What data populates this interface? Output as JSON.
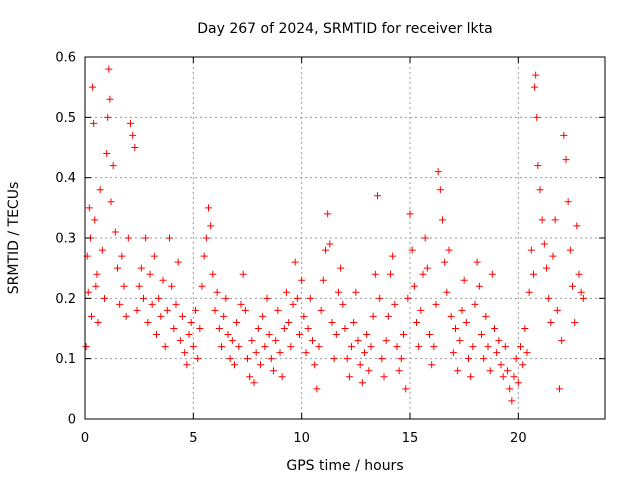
{
  "chart_data": {
    "type": "scatter",
    "title": "Day 267 of 2024, SRMTID for receiver lkta",
    "xlabel": "GPS time / hours",
    "ylabel": "SRMTID / TECUs",
    "xlim": [
      0,
      24
    ],
    "ylim": [
      0,
      0.6
    ],
    "xticks": [
      0,
      5,
      10,
      15,
      20
    ],
    "xtick_labels": [
      "0",
      "5",
      "10",
      "15",
      "20"
    ],
    "yticks": [
      0,
      0.1,
      0.2,
      0.3,
      0.4,
      0.5,
      0.6
    ],
    "ytick_labels": [
      "0",
      "0.1",
      "0.2",
      "0.3",
      "0.4",
      "0.5",
      "0.6"
    ],
    "grid": true,
    "marker": "+",
    "series_color": "#ff0000",
    "series": [
      {
        "name": "SRMTID",
        "points": [
          [
            0.05,
            0.12
          ],
          [
            0.1,
            0.27
          ],
          [
            0.15,
            0.21
          ],
          [
            0.2,
            0.35
          ],
          [
            0.25,
            0.3
          ],
          [
            0.3,
            0.17
          ],
          [
            0.35,
            0.55
          ],
          [
            0.4,
            0.49
          ],
          [
            0.45,
            0.33
          ],
          [
            0.5,
            0.22
          ],
          [
            0.55,
            0.24
          ],
          [
            0.6,
            0.16
          ],
          [
            0.7,
            0.38
          ],
          [
            0.8,
            0.28
          ],
          [
            0.9,
            0.2
          ],
          [
            1.0,
            0.44
          ],
          [
            1.05,
            0.5
          ],
          [
            1.1,
            0.58
          ],
          [
            1.15,
            0.53
          ],
          [
            1.2,
            0.36
          ],
          [
            1.3,
            0.42
          ],
          [
            1.4,
            0.31
          ],
          [
            1.5,
            0.25
          ],
          [
            1.6,
            0.19
          ],
          [
            1.7,
            0.27
          ],
          [
            1.8,
            0.22
          ],
          [
            1.9,
            0.17
          ],
          [
            2.0,
            0.3
          ],
          [
            2.1,
            0.49
          ],
          [
            2.2,
            0.47
          ],
          [
            2.3,
            0.45
          ],
          [
            2.4,
            0.18
          ],
          [
            2.5,
            0.22
          ],
          [
            2.6,
            0.25
          ],
          [
            2.7,
            0.2
          ],
          [
            2.8,
            0.3
          ],
          [
            2.9,
            0.16
          ],
          [
            3.0,
            0.24
          ],
          [
            3.1,
            0.19
          ],
          [
            3.2,
            0.27
          ],
          [
            3.3,
            0.14
          ],
          [
            3.4,
            0.2
          ],
          [
            3.5,
            0.17
          ],
          [
            3.6,
            0.23
          ],
          [
            3.7,
            0.12
          ],
          [
            3.8,
            0.18
          ],
          [
            3.9,
            0.3
          ],
          [
            4.0,
            0.22
          ],
          [
            4.1,
            0.15
          ],
          [
            4.2,
            0.19
          ],
          [
            4.3,
            0.26
          ],
          [
            4.4,
            0.13
          ],
          [
            4.5,
            0.17
          ],
          [
            4.6,
            0.11
          ],
          [
            4.7,
            0.09
          ],
          [
            4.8,
            0.14
          ],
          [
            4.9,
            0.16
          ],
          [
            5.0,
            0.12
          ],
          [
            5.1,
            0.18
          ],
          [
            5.2,
            0.1
          ],
          [
            5.3,
            0.15
          ],
          [
            5.4,
            0.22
          ],
          [
            5.5,
            0.27
          ],
          [
            5.6,
            0.3
          ],
          [
            5.7,
            0.35
          ],
          [
            5.8,
            0.32
          ],
          [
            5.9,
            0.24
          ],
          [
            6.0,
            0.18
          ],
          [
            6.1,
            0.21
          ],
          [
            6.2,
            0.15
          ],
          [
            6.3,
            0.12
          ],
          [
            6.4,
            0.17
          ],
          [
            6.5,
            0.2
          ],
          [
            6.6,
            0.14
          ],
          [
            6.7,
            0.1
          ],
          [
            6.8,
            0.13
          ],
          [
            6.9,
            0.09
          ],
          [
            7.0,
            0.16
          ],
          [
            7.1,
            0.12
          ],
          [
            7.2,
            0.19
          ],
          [
            7.3,
            0.24
          ],
          [
            7.4,
            0.18
          ],
          [
            7.5,
            0.1
          ],
          [
            7.6,
            0.07
          ],
          [
            7.7,
            0.13
          ],
          [
            7.8,
            0.06
          ],
          [
            7.9,
            0.11
          ],
          [
            8.0,
            0.15
          ],
          [
            8.1,
            0.09
          ],
          [
            8.2,
            0.17
          ],
          [
            8.3,
            0.12
          ],
          [
            8.4,
            0.2
          ],
          [
            8.5,
            0.14
          ],
          [
            8.6,
            0.1
          ],
          [
            8.7,
            0.08
          ],
          [
            8.8,
            0.13
          ],
          [
            8.9,
            0.18
          ],
          [
            9.0,
            0.11
          ],
          [
            9.1,
            0.07
          ],
          [
            9.2,
            0.15
          ],
          [
            9.3,
            0.21
          ],
          [
            9.4,
            0.16
          ],
          [
            9.5,
            0.12
          ],
          [
            9.6,
            0.19
          ],
          [
            9.7,
            0.26
          ],
          [
            9.8,
            0.2
          ],
          [
            9.9,
            0.14
          ],
          [
            10.0,
            0.23
          ],
          [
            10.1,
            0.17
          ],
          [
            10.2,
            0.11
          ],
          [
            10.3,
            0.15
          ],
          [
            10.4,
            0.2
          ],
          [
            10.5,
            0.13
          ],
          [
            10.6,
            0.09
          ],
          [
            10.7,
            0.05
          ],
          [
            10.8,
            0.12
          ],
          [
            10.9,
            0.18
          ],
          [
            11.0,
            0.23
          ],
          [
            11.1,
            0.28
          ],
          [
            11.2,
            0.34
          ],
          [
            11.3,
            0.29
          ],
          [
            11.4,
            0.16
          ],
          [
            11.5,
            0.1
          ],
          [
            11.6,
            0.14
          ],
          [
            11.7,
            0.21
          ],
          [
            11.8,
            0.25
          ],
          [
            11.9,
            0.19
          ],
          [
            12.0,
            0.15
          ],
          [
            12.1,
            0.1
          ],
          [
            12.2,
            0.07
          ],
          [
            12.3,
            0.12
          ],
          [
            12.4,
            0.16
          ],
          [
            12.5,
            0.21
          ],
          [
            12.6,
            0.13
          ],
          [
            12.7,
            0.09
          ],
          [
            12.8,
            0.06
          ],
          [
            12.9,
            0.11
          ],
          [
            13.0,
            0.14
          ],
          [
            13.1,
            0.08
          ],
          [
            13.2,
            0.12
          ],
          [
            13.3,
            0.17
          ],
          [
            13.4,
            0.24
          ],
          [
            13.5,
            0.37
          ],
          [
            13.6,
            0.2
          ],
          [
            13.7,
            0.1
          ],
          [
            13.8,
            0.07
          ],
          [
            13.9,
            0.13
          ],
          [
            14.0,
            0.17
          ],
          [
            14.1,
            0.24
          ],
          [
            14.2,
            0.27
          ],
          [
            14.3,
            0.19
          ],
          [
            14.4,
            0.12
          ],
          [
            14.5,
            0.08
          ],
          [
            14.6,
            0.1
          ],
          [
            14.7,
            0.14
          ],
          [
            14.8,
            0.05
          ],
          [
            14.9,
            0.2
          ],
          [
            15.0,
            0.34
          ],
          [
            15.1,
            0.28
          ],
          [
            15.2,
            0.22
          ],
          [
            15.3,
            0.16
          ],
          [
            15.4,
            0.12
          ],
          [
            15.5,
            0.18
          ],
          [
            15.6,
            0.24
          ],
          [
            15.7,
            0.3
          ],
          [
            15.8,
            0.25
          ],
          [
            15.9,
            0.14
          ],
          [
            16.0,
            0.09
          ],
          [
            16.1,
            0.12
          ],
          [
            16.2,
            0.19
          ],
          [
            16.3,
            0.41
          ],
          [
            16.4,
            0.38
          ],
          [
            16.5,
            0.33
          ],
          [
            16.6,
            0.26
          ],
          [
            16.7,
            0.21
          ],
          [
            16.8,
            0.28
          ],
          [
            16.9,
            0.17
          ],
          [
            17.0,
            0.11
          ],
          [
            17.1,
            0.15
          ],
          [
            17.2,
            0.08
          ],
          [
            17.3,
            0.13
          ],
          [
            17.4,
            0.18
          ],
          [
            17.5,
            0.23
          ],
          [
            17.6,
            0.16
          ],
          [
            17.7,
            0.1
          ],
          [
            17.8,
            0.07
          ],
          [
            17.9,
            0.12
          ],
          [
            18.0,
            0.19
          ],
          [
            18.1,
            0.26
          ],
          [
            18.2,
            0.22
          ],
          [
            18.3,
            0.14
          ],
          [
            18.4,
            0.1
          ],
          [
            18.5,
            0.17
          ],
          [
            18.6,
            0.12
          ],
          [
            18.7,
            0.08
          ],
          [
            18.8,
            0.24
          ],
          [
            18.9,
            0.15
          ],
          [
            19.0,
            0.11
          ],
          [
            19.1,
            0.13
          ],
          [
            19.2,
            0.09
          ],
          [
            19.3,
            0.07
          ],
          [
            19.4,
            0.12
          ],
          [
            19.5,
            0.08
          ],
          [
            19.6,
            0.05
          ],
          [
            19.7,
            0.03
          ],
          [
            19.8,
            0.07
          ],
          [
            19.9,
            0.1
          ],
          [
            20.0,
            0.06
          ],
          [
            20.1,
            0.12
          ],
          [
            20.2,
            0.09
          ],
          [
            20.3,
            0.15
          ],
          [
            20.4,
            0.11
          ],
          [
            20.5,
            0.21
          ],
          [
            20.6,
            0.28
          ],
          [
            20.7,
            0.24
          ],
          [
            20.75,
            0.55
          ],
          [
            20.8,
            0.57
          ],
          [
            20.85,
            0.5
          ],
          [
            20.9,
            0.42
          ],
          [
            21.0,
            0.38
          ],
          [
            21.1,
            0.33
          ],
          [
            21.2,
            0.29
          ],
          [
            21.3,
            0.25
          ],
          [
            21.4,
            0.2
          ],
          [
            21.5,
            0.16
          ],
          [
            21.6,
            0.27
          ],
          [
            21.7,
            0.33
          ],
          [
            21.8,
            0.18
          ],
          [
            21.9,
            0.05
          ],
          [
            22.0,
            0.13
          ],
          [
            22.1,
            0.47
          ],
          [
            22.2,
            0.43
          ],
          [
            22.3,
            0.36
          ],
          [
            22.4,
            0.28
          ],
          [
            22.5,
            0.22
          ],
          [
            22.6,
            0.16
          ],
          [
            22.7,
            0.32
          ],
          [
            22.8,
            0.24
          ],
          [
            22.9,
            0.21
          ],
          [
            23.0,
            0.2
          ]
        ]
      }
    ]
  }
}
